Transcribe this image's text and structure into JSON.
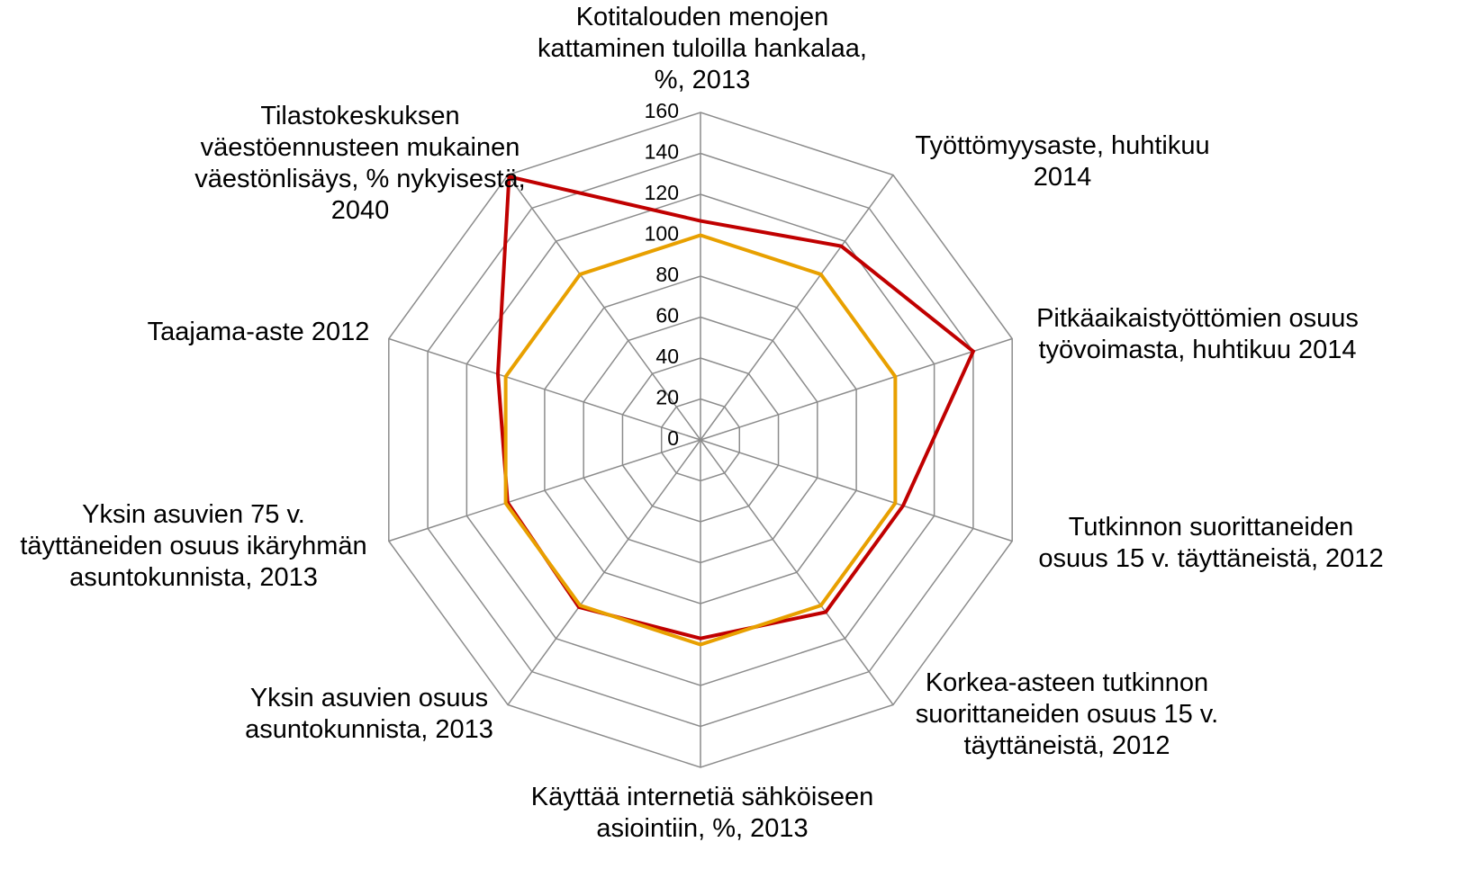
{
  "chart_data": {
    "type": "radar",
    "categories": [
      "Kotitalouden menojen\nkattaminen tuloilla hankalaa,\n%, 2013",
      "Työttömyysaste, huhtikuu\n2014",
      "Pitkäaikaistyöttömien osuus\ntyövoimasta, huhtikuu 2014",
      "Tutkinnon suorittaneiden\nosuus 15 v. täyttäneistä, 2012",
      "Korkea-asteen tutkinnon\nsuorittaneiden osuus 15 v.\ntäyttäneistä, 2012",
      "Käyttää internetiä sähköiseen\nasiointiin, %, 2013",
      "Yksin asuvien osuus\nasuntokunnista, 2013",
      "Yksin asuvien 75 v.\ntäyttäneiden osuus ikäryhmän\nasuntokunnista, 2013",
      "Taajama-aste 2012",
      "Tilastokeskuksen\nväestöennusteen mukainen\nväestönlisäys, % nykyisestä,\n2040"
    ],
    "series": [
      {
        "color": "#c00000",
        "values": [
          107,
          117,
          140,
          104,
          104,
          97,
          101,
          99,
          104,
          159
        ]
      },
      {
        "color": "#e8a000",
        "values": [
          100,
          100,
          100,
          100,
          100,
          100,
          100,
          100,
          100,
          100
        ]
      }
    ],
    "ylim": [
      0,
      160
    ],
    "yticks": [
      0,
      20,
      40,
      60,
      80,
      100,
      120,
      140,
      160
    ],
    "grid": true
  }
}
